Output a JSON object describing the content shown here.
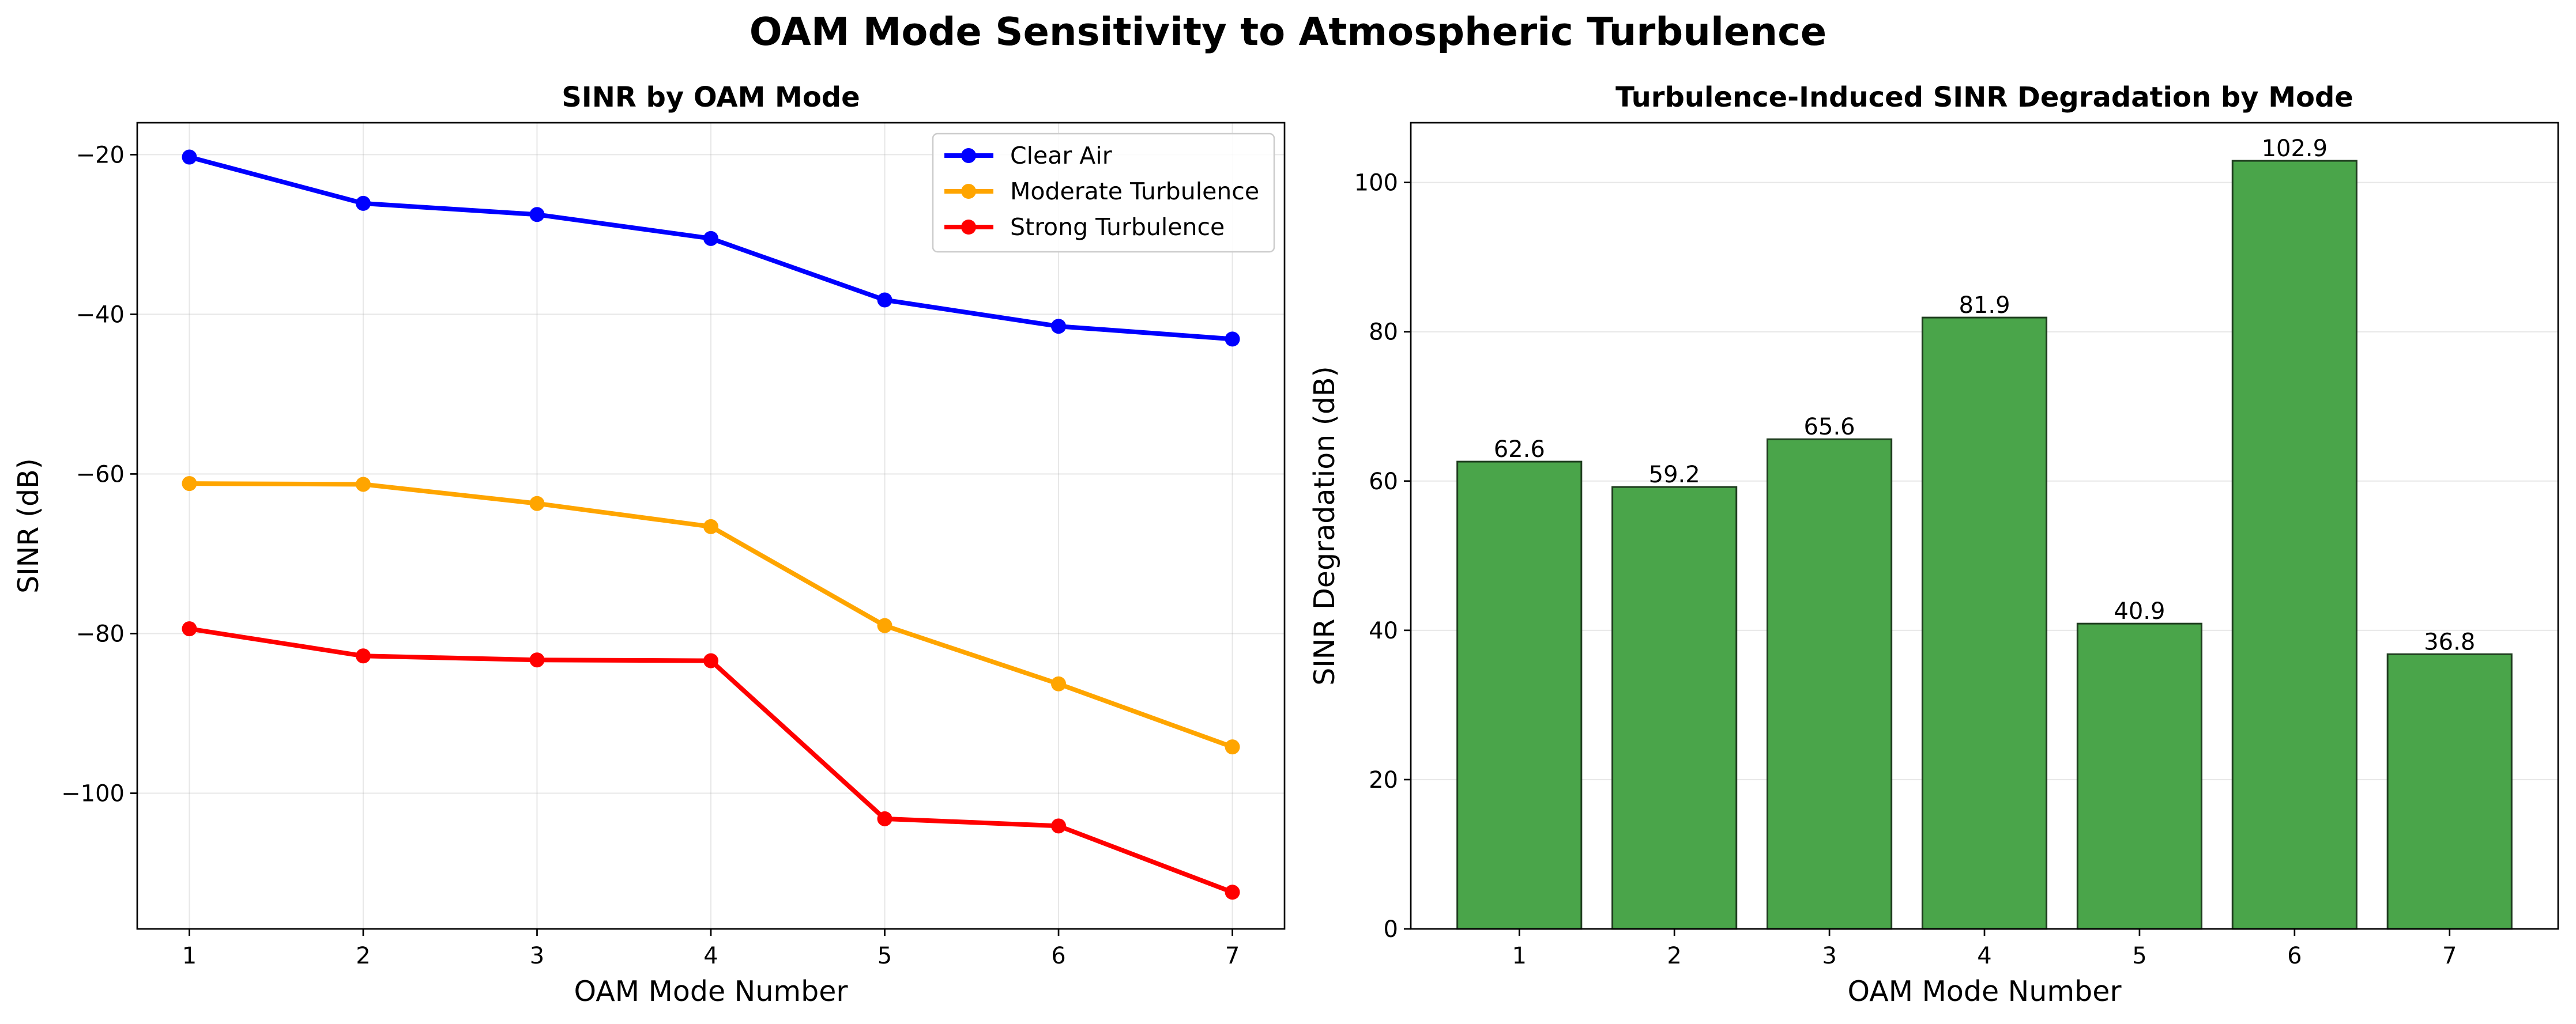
{
  "figure": {
    "title": "OAM Mode Sensitivity to Atmospheric Turbulence"
  },
  "colors": {
    "clear_air": "#0000ff",
    "moderate": "#ffa500",
    "strong": "#ff0000",
    "bar_fill": "#4aa54a",
    "bar_edge": "#1f3d1f"
  },
  "chart_data": [
    {
      "type": "line",
      "title": "SINR by OAM Mode",
      "xlabel": "OAM Mode Number",
      "ylabel": "SINR (dB)",
      "x": [
        1,
        2,
        3,
        4,
        5,
        6,
        7
      ],
      "xlim": [
        0.7,
        7.3
      ],
      "ylim": [
        -117,
        -16
      ],
      "yticks": [
        -100,
        -80,
        -60,
        -40,
        -20
      ],
      "ytick_labels": [
        "−100",
        "−80",
        "−60",
        "−40",
        "−20"
      ],
      "grid": true,
      "legend_position": "top-right",
      "series": [
        {
          "name": "Clear Air",
          "color": "#0000ff",
          "values": [
            -20.3,
            -26.1,
            -27.5,
            -30.5,
            -38.2,
            -41.5,
            -43.1
          ]
        },
        {
          "name": "Moderate Turbulence",
          "color": "#ffa500",
          "values": [
            -61.2,
            -61.3,
            -63.7,
            -66.6,
            -79.0,
            -86.3,
            -94.2
          ]
        },
        {
          "name": "Strong Turbulence",
          "color": "#ff0000",
          "values": [
            -79.4,
            -82.8,
            -83.3,
            -83.4,
            -103.2,
            -104.1,
            -112.4
          ]
        }
      ]
    },
    {
      "type": "bar",
      "title": "Turbulence-Induced SINR Degradation by Mode",
      "xlabel": "OAM Mode Number",
      "ylabel": "SINR Degradation (dB)",
      "categories": [
        "1",
        "2",
        "3",
        "4",
        "5",
        "6",
        "7"
      ],
      "values": [
        62.6,
        59.2,
        65.6,
        81.9,
        40.9,
        102.9,
        36.8
      ],
      "value_labels": [
        "62.6",
        "59.2",
        "65.6",
        "81.9",
        "40.9",
        "102.9",
        "36.8"
      ],
      "ylim": [
        0,
        108
      ],
      "yticks": [
        0,
        20,
        40,
        60,
        80,
        100
      ],
      "ytick_labels": [
        "0",
        "20",
        "40",
        "60",
        "80",
        "100"
      ],
      "grid": true
    }
  ]
}
